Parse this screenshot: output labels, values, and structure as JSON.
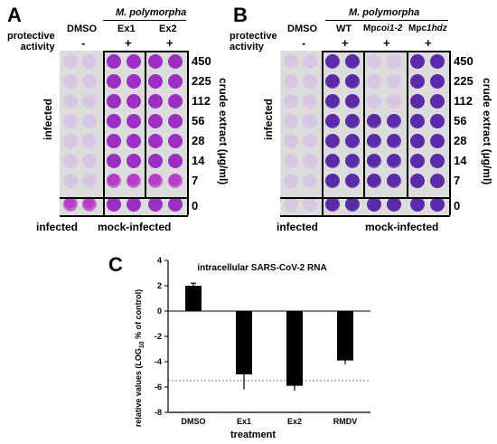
{
  "panelA": {
    "letter": "A",
    "species": "M. polymorpha",
    "protective_label": "protective\nactivity",
    "columns": [
      "DMSO",
      "Ex1",
      "Ex2"
    ],
    "signs": [
      "-",
      "+",
      "+"
    ],
    "concentrations": [
      "450",
      "225",
      "112",
      "56",
      "28",
      "14",
      "7",
      "0"
    ],
    "side_label": "infected",
    "axis_label": "crude extract  (µg/ml)",
    "bottom_left": "infected",
    "bottom_right": "mock-infected"
  },
  "panelB": {
    "letter": "B",
    "species": "M. polymorpha",
    "protective_label": "protective\nactivity",
    "columns": [
      "DMSO",
      "WT",
      "Mpcoi1-2",
      "Mpc1hdz"
    ],
    "col_prefix": "Mp",
    "col3_suffix": "coi1-2",
    "col4_suffix": "c1hdz",
    "signs": [
      "-",
      "+",
      "+",
      "+"
    ],
    "concentrations": [
      "450",
      "225",
      "112",
      "56",
      "28",
      "14",
      "7",
      "0"
    ],
    "side_label": "infected",
    "axis_label": "crude extract  (µg/ml)",
    "bottom_left": "infected",
    "bottom_right": "mock-infected"
  },
  "panelC": {
    "letter": "C",
    "chart_data": {
      "type": "bar",
      "title": "intracellular SARS-CoV-2 RNA",
      "xlabel": "treatment",
      "ylabel_parts": [
        "relative values (LOG",
        "10",
        " % of control)"
      ],
      "categories": [
        "DMSO",
        "Ex1",
        "Ex2",
        "RMDV"
      ],
      "values": [
        2.0,
        -5.0,
        -5.9,
        -3.9
      ],
      "errors": [
        0.2,
        1.2,
        0.4,
        0.3
      ],
      "significance": [
        "",
        "*",
        "*",
        "*"
      ],
      "ylim": [
        -8,
        4
      ],
      "yticks": [
        "4",
        "2",
        "0",
        "-2",
        "-4",
        "-6",
        "-8"
      ],
      "reference_line": -5.5,
      "colors": {
        "bar": "#000000",
        "reference": "#555555"
      }
    }
  },
  "colors": {
    "purple_dark": "#5a2aa8",
    "purple": "#9b2fc2",
    "magenta": "#b73dc8",
    "pale": "#d7c6e2",
    "plate": "#cfcfd6"
  }
}
